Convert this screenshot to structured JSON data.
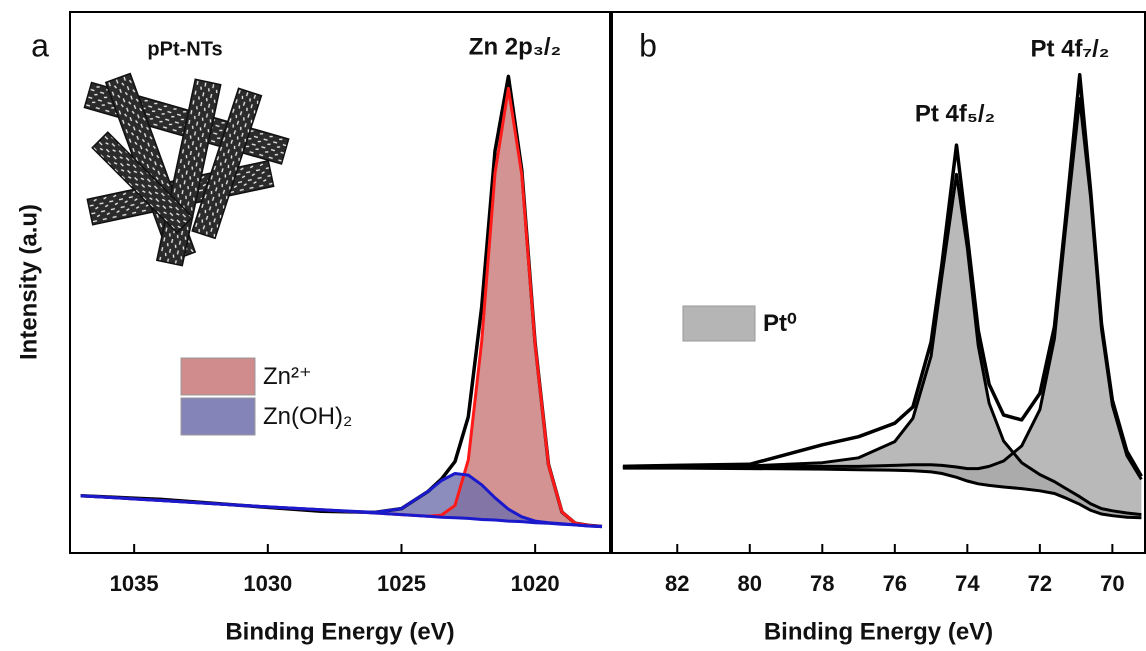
{
  "chart_data": [
    {
      "type": "line",
      "panel_label": "a",
      "annotations": [
        "pPt-NTs",
        "Zn 2p₃/₂"
      ],
      "xlabel": "Binding Energy (eV)",
      "ylabel": "Intensity (a.u)",
      "x": [
        1037,
        1034,
        1031,
        1028,
        1026,
        1025,
        1024,
        1023.5,
        1023,
        1022.5,
        1022,
        1021.5,
        1021,
        1020.5,
        1020,
        1019.5,
        1019,
        1018.5,
        1018,
        1017.5
      ],
      "xlim": [
        1037.4,
        1017.2
      ],
      "xticks": [
        1035,
        1030,
        1025,
        1020
      ],
      "ylim": [
        0,
        100
      ],
      "series": [
        {
          "color": "#000000",
          "values": [
            10.6,
            9.9,
            8.8,
            7.7,
            7.5,
            8.2,
            11.4,
            13.7,
            16.9,
            25.2,
            45.5,
            74.3,
            88.1,
            70.8,
            38.8,
            16.4,
            7.6,
            5.5,
            5.1,
            4.9
          ]
        },
        {
          "name": "Zn²⁺",
          "color": "#ff1a1a",
          "fill": "#c87878",
          "values": [
            10.6,
            9.7,
            8.8,
            8.0,
            7.4,
            7.1,
            6.8,
            7.0,
            8.8,
            17.2,
            39.1,
            70.2,
            85.9,
            69.9,
            38.5,
            16.3,
            7.6,
            5.5,
            5.1,
            4.9
          ]
        },
        {
          "name": "Zn(OH)₂",
          "color": "#1a1acc",
          "fill": "#6f6fad",
          "values": [
            10.6,
            9.7,
            8.8,
            8.0,
            7.5,
            8.2,
            11.4,
            13.4,
            14.7,
            14.4,
            12.6,
            10.2,
            8.1,
            6.7,
            5.9,
            5.6,
            5.4,
            5.2,
            5.0,
            4.9
          ]
        }
      ],
      "baseline": {
        "color": "#1a1acc",
        "values": [
          10.6,
          9.7,
          8.8,
          8.0,
          7.4,
          7.1,
          6.8,
          6.6,
          6.5,
          6.4,
          6.2,
          6.1,
          5.9,
          5.8,
          5.6,
          5.5,
          5.3,
          5.2,
          5.0,
          4.9
        ]
      }
    },
    {
      "type": "line",
      "panel_label": "b",
      "annotations": [
        "Pt 4f₅/₂",
        "Pt 4f₇/₂"
      ],
      "xlabel": "Binding Energy (eV)",
      "x": [
        83.5,
        82,
        80,
        78,
        77,
        76,
        75.5,
        75,
        74.7,
        74.3,
        74,
        73.7,
        73.4,
        73,
        72.5,
        72,
        71.6,
        71.3,
        70.9,
        70.6,
        70.3,
        70,
        69.6,
        69.2
      ],
      "xlim": [
        83.8,
        69.1
      ],
      "xticks": [
        82,
        80,
        78,
        76,
        74,
        72,
        70
      ],
      "ylim": [
        0,
        100
      ],
      "series": [
        {
          "color": "#000000",
          "values": [
            16.0,
            16.2,
            16.4,
            20.0,
            21.5,
            24.0,
            27.0,
            39.0,
            53.5,
            75.4,
            58.7,
            41.2,
            31.2,
            25.5,
            24.6,
            29.5,
            41.8,
            61.1,
            88.4,
            67.0,
            42.4,
            28.2,
            18.8,
            14.2
          ]
        },
        {
          "name": "Pt⁰",
          "color": "#000000",
          "fill": "#a8a8a8",
          "values": [
            15.9,
            16.0,
            16.1,
            16.7,
            17.6,
            20.6,
            24.9,
            36.4,
            51.3,
            70.0,
            56.4,
            38.4,
            27.7,
            20.7,
            16.7,
            14.5,
            13.2,
            12.0,
            10.4,
            9.1,
            8.2,
            7.8,
            7.4,
            7.1
          ]
        },
        {
          "color": "#000000",
          "fill": "#a8a8a8",
          "values": [
            15.8,
            15.9,
            15.9,
            16.0,
            16.0,
            16.2,
            16.3,
            16.3,
            16.2,
            15.9,
            15.6,
            15.6,
            16.0,
            17.0,
            19.8,
            26.5,
            39.6,
            59.3,
            84.0,
            65.7,
            41.4,
            27.3,
            18.0,
            13.6
          ]
        }
      ],
      "baseline": {
        "color": "#000000",
        "values": [
          15.7,
          15.7,
          15.6,
          15.5,
          15.4,
          15.3,
          15.2,
          15.0,
          14.7,
          14.0,
          13.3,
          12.8,
          12.5,
          12.2,
          11.9,
          11.5,
          11.0,
          10.2,
          9.0,
          7.9,
          7.2,
          6.9,
          6.6,
          6.5
        ]
      }
    }
  ]
}
